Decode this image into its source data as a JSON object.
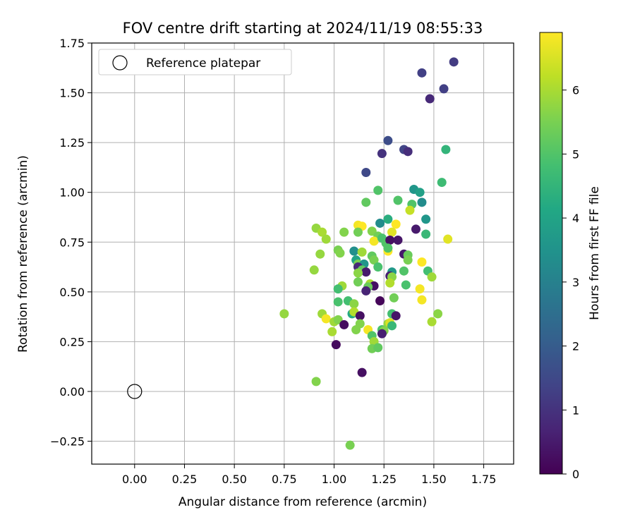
{
  "chart_data": {
    "type": "scatter",
    "title": "FOV centre drift starting at 2024/11/19 08:55:33",
    "xlabel": "Angular distance from reference (arcmin)",
    "ylabel": "Rotation from reference (arcmin)",
    "xlim": [
      -0.215,
      1.9
    ],
    "ylim": [
      -0.365,
      1.75
    ],
    "xticks": [
      0.0,
      0.25,
      0.5,
      0.75,
      1.0,
      1.25,
      1.5,
      1.75
    ],
    "xtick_labels": [
      "0.00",
      "0.25",
      "0.50",
      "0.75",
      "1.00",
      "1.25",
      "1.50",
      "1.75"
    ],
    "yticks": [
      -0.25,
      0.0,
      0.25,
      0.5,
      0.75,
      1.0,
      1.25,
      1.5,
      1.75
    ],
    "ytick_labels": [
      "−0.25",
      "0.00",
      "0.25",
      "0.50",
      "0.75",
      "1.00",
      "1.25",
      "1.50",
      "1.75"
    ],
    "grid": true,
    "legend": {
      "placement": "upper-left",
      "label": "Reference platepar"
    },
    "reference_point": {
      "x": 0.0,
      "y": 0.0,
      "marker": "open-circle",
      "color": "#000000"
    },
    "colorbar": {
      "label": "Hours from first FF file",
      "colormap": "viridis",
      "range": [
        0,
        6.9
      ],
      "ticks": [
        0,
        1,
        2,
        3,
        4,
        5,
        6
      ],
      "tick_labels": [
        "0",
        "1",
        "2",
        "3",
        "4",
        "5",
        "6"
      ]
    },
    "points": [
      {
        "x": 1.6,
        "y": 1.655,
        "h": 1.2
      },
      {
        "x": 1.44,
        "y": 1.6,
        "h": 1.3
      },
      {
        "x": 1.55,
        "y": 1.52,
        "h": 1.3
      },
      {
        "x": 1.48,
        "y": 1.47,
        "h": 0.8
      },
      {
        "x": 1.27,
        "y": 1.26,
        "h": 1.6
      },
      {
        "x": 1.24,
        "y": 1.195,
        "h": 1.0
      },
      {
        "x": 1.35,
        "y": 1.215,
        "h": 1.4
      },
      {
        "x": 1.37,
        "y": 1.205,
        "h": 0.9
      },
      {
        "x": 1.16,
        "y": 1.1,
        "h": 1.5
      },
      {
        "x": 1.56,
        "y": 1.215,
        "h": 4.5
      },
      {
        "x": 1.54,
        "y": 1.05,
        "h": 4.7
      },
      {
        "x": 1.22,
        "y": 1.01,
        "h": 5.0
      },
      {
        "x": 1.4,
        "y": 1.015,
        "h": 3.6
      },
      {
        "x": 1.43,
        "y": 1.0,
        "h": 3.9
      },
      {
        "x": 1.32,
        "y": 0.96,
        "h": 5.0
      },
      {
        "x": 1.44,
        "y": 0.95,
        "h": 3.3
      },
      {
        "x": 1.16,
        "y": 0.95,
        "h": 5.2
      },
      {
        "x": 1.39,
        "y": 0.94,
        "h": 5.0
      },
      {
        "x": 1.38,
        "y": 0.91,
        "h": 6.3
      },
      {
        "x": 1.27,
        "y": 0.865,
        "h": 4.3
      },
      {
        "x": 1.46,
        "y": 0.865,
        "h": 3.6
      },
      {
        "x": 1.23,
        "y": 0.845,
        "h": 3.3
      },
      {
        "x": 0.91,
        "y": 0.82,
        "h": 5.8
      },
      {
        "x": 1.12,
        "y": 0.835,
        "h": 6.8
      },
      {
        "x": 1.14,
        "y": 0.83,
        "h": 6.9
      },
      {
        "x": 1.31,
        "y": 0.84,
        "h": 6.9
      },
      {
        "x": 1.29,
        "y": 0.8,
        "h": 6.6
      },
      {
        "x": 1.41,
        "y": 0.815,
        "h": 0.5
      },
      {
        "x": 1.05,
        "y": 0.8,
        "h": 5.6
      },
      {
        "x": 1.12,
        "y": 0.8,
        "h": 5.4
      },
      {
        "x": 1.19,
        "y": 0.805,
        "h": 5.6
      },
      {
        "x": 1.46,
        "y": 0.79,
        "h": 4.6
      },
      {
        "x": 1.22,
        "y": 0.78,
        "h": 5.4
      },
      {
        "x": 0.94,
        "y": 0.8,
        "h": 6.0
      },
      {
        "x": 0.96,
        "y": 0.765,
        "h": 5.9
      },
      {
        "x": 1.2,
        "y": 0.755,
        "h": 6.8
      },
      {
        "x": 1.24,
        "y": 0.77,
        "h": 4.9
      },
      {
        "x": 1.26,
        "y": 0.745,
        "h": 5.0
      },
      {
        "x": 1.28,
        "y": 0.76,
        "h": 0.3
      },
      {
        "x": 1.32,
        "y": 0.76,
        "h": 0.4
      },
      {
        "x": 1.57,
        "y": 0.765,
        "h": 6.6
      },
      {
        "x": 1.02,
        "y": 0.71,
        "h": 5.5
      },
      {
        "x": 1.03,
        "y": 0.695,
        "h": 5.6
      },
      {
        "x": 1.1,
        "y": 0.705,
        "h": 3.4
      },
      {
        "x": 1.14,
        "y": 0.7,
        "h": 5.9
      },
      {
        "x": 1.27,
        "y": 0.705,
        "h": 6.9
      },
      {
        "x": 1.27,
        "y": 0.72,
        "h": 5.0
      },
      {
        "x": 1.35,
        "y": 0.69,
        "h": 0.5
      },
      {
        "x": 0.93,
        "y": 0.69,
        "h": 5.8
      },
      {
        "x": 1.11,
        "y": 0.66,
        "h": 4.0
      },
      {
        "x": 1.19,
        "y": 0.68,
        "h": 5.2
      },
      {
        "x": 1.2,
        "y": 0.66,
        "h": 5.5
      },
      {
        "x": 1.37,
        "y": 0.685,
        "h": 5.3
      },
      {
        "x": 1.12,
        "y": 0.64,
        "h": 5.5
      },
      {
        "x": 1.15,
        "y": 0.64,
        "h": 3.6
      },
      {
        "x": 1.12,
        "y": 0.625,
        "h": 0.8
      },
      {
        "x": 1.22,
        "y": 0.625,
        "h": 4.9
      },
      {
        "x": 1.37,
        "y": 0.66,
        "h": 5.5
      },
      {
        "x": 1.44,
        "y": 0.65,
        "h": 6.9
      },
      {
        "x": 0.9,
        "y": 0.61,
        "h": 5.8
      },
      {
        "x": 1.14,
        "y": 0.61,
        "h": 5.2
      },
      {
        "x": 1.16,
        "y": 0.6,
        "h": 0.5
      },
      {
        "x": 1.12,
        "y": 0.595,
        "h": 5.7
      },
      {
        "x": 1.29,
        "y": 0.6,
        "h": 3.7
      },
      {
        "x": 1.35,
        "y": 0.605,
        "h": 5.0
      },
      {
        "x": 1.47,
        "y": 0.605,
        "h": 4.8
      },
      {
        "x": 1.28,
        "y": 0.58,
        "h": 0.6
      },
      {
        "x": 1.29,
        "y": 0.575,
        "h": 5.7
      },
      {
        "x": 1.49,
        "y": 0.575,
        "h": 5.9
      },
      {
        "x": 1.12,
        "y": 0.55,
        "h": 5.4
      },
      {
        "x": 1.28,
        "y": 0.545,
        "h": 6.1
      },
      {
        "x": 1.18,
        "y": 0.54,
        "h": 6.0
      },
      {
        "x": 1.36,
        "y": 0.535,
        "h": 4.9
      },
      {
        "x": 1.04,
        "y": 0.53,
        "h": 5.9
      },
      {
        "x": 1.2,
        "y": 0.53,
        "h": 0.3
      },
      {
        "x": 1.17,
        "y": 0.525,
        "h": 5.3
      },
      {
        "x": 1.02,
        "y": 0.515,
        "h": 4.8
      },
      {
        "x": 1.16,
        "y": 0.505,
        "h": 0.7
      },
      {
        "x": 1.43,
        "y": 0.515,
        "h": 6.8
      },
      {
        "x": 1.23,
        "y": 0.455,
        "h": 0.1
      },
      {
        "x": 1.3,
        "y": 0.47,
        "h": 5.4
      },
      {
        "x": 1.44,
        "y": 0.46,
        "h": 6.8
      },
      {
        "x": 1.02,
        "y": 0.45,
        "h": 4.9
      },
      {
        "x": 1.07,
        "y": 0.455,
        "h": 4.8
      },
      {
        "x": 1.1,
        "y": 0.44,
        "h": 5.7
      },
      {
        "x": 0.75,
        "y": 0.39,
        "h": 5.8
      },
      {
        "x": 0.94,
        "y": 0.39,
        "h": 5.9
      },
      {
        "x": 1.09,
        "y": 0.39,
        "h": 4.2
      },
      {
        "x": 1.1,
        "y": 0.4,
        "h": 6.1
      },
      {
        "x": 1.13,
        "y": 0.38,
        "h": 0.3
      },
      {
        "x": 1.29,
        "y": 0.39,
        "h": 4.8
      },
      {
        "x": 1.31,
        "y": 0.38,
        "h": 0.4
      },
      {
        "x": 1.52,
        "y": 0.39,
        "h": 5.7
      },
      {
        "x": 0.96,
        "y": 0.365,
        "h": 6.8
      },
      {
        "x": 1.0,
        "y": 0.35,
        "h": 5.9
      },
      {
        "x": 1.02,
        "y": 0.36,
        "h": 5.6
      },
      {
        "x": 1.05,
        "y": 0.335,
        "h": 0.2
      },
      {
        "x": 1.13,
        "y": 0.34,
        "h": 5.6
      },
      {
        "x": 1.27,
        "y": 0.34,
        "h": 5.8
      },
      {
        "x": 1.28,
        "y": 0.345,
        "h": 6.5
      },
      {
        "x": 1.29,
        "y": 0.33,
        "h": 4.6
      },
      {
        "x": 1.49,
        "y": 0.35,
        "h": 6.0
      },
      {
        "x": 0.99,
        "y": 0.3,
        "h": 6.0
      },
      {
        "x": 1.11,
        "y": 0.31,
        "h": 5.6
      },
      {
        "x": 1.17,
        "y": 0.31,
        "h": 6.8
      },
      {
        "x": 1.24,
        "y": 0.31,
        "h": 4.9
      },
      {
        "x": 1.25,
        "y": 0.305,
        "h": 5.6
      },
      {
        "x": 1.19,
        "y": 0.28,
        "h": 5.0
      },
      {
        "x": 1.24,
        "y": 0.29,
        "h": 0.6
      },
      {
        "x": 1.2,
        "y": 0.25,
        "h": 5.9
      },
      {
        "x": 1.01,
        "y": 0.235,
        "h": 0.2
      },
      {
        "x": 1.19,
        "y": 0.215,
        "h": 5.4
      },
      {
        "x": 1.22,
        "y": 0.22,
        "h": 5.2
      },
      {
        "x": 1.14,
        "y": 0.095,
        "h": 0.3
      },
      {
        "x": 0.91,
        "y": 0.05,
        "h": 5.6
      },
      {
        "x": 1.08,
        "y": -0.27,
        "h": 5.5
      }
    ]
  }
}
